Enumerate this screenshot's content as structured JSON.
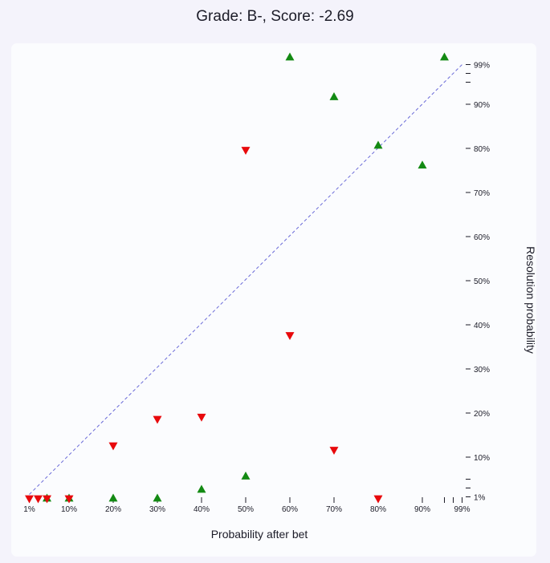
{
  "header": {
    "title": "Grade: B-, Score: -2.69"
  },
  "colors": {
    "up_green": "#138a13",
    "down_red": "#e8090c",
    "diagonal": "#6b6bd8",
    "card_bg": "#fbfcfe",
    "page_bg": "#f4f3fb"
  },
  "chart_data": {
    "type": "scatter",
    "title": "Grade: B-, Score: -2.69",
    "xlabel": "Probability after bet",
    "ylabel": "Resolution probability",
    "xlim": [
      0,
      100
    ],
    "ylim": [
      0,
      100
    ],
    "x_ticks": [
      {
        "v": 1,
        "label": "1%"
      },
      {
        "v": 10,
        "label": "10%"
      },
      {
        "v": 20,
        "label": "20%"
      },
      {
        "v": 30,
        "label": "30%"
      },
      {
        "v": 40,
        "label": "40%"
      },
      {
        "v": 50,
        "label": "50%"
      },
      {
        "v": 60,
        "label": "60%"
      },
      {
        "v": 70,
        "label": "70%"
      },
      {
        "v": 80,
        "label": "80%"
      },
      {
        "v": 90,
        "label": "90%"
      },
      {
        "v": 95,
        "label": ""
      },
      {
        "v": 97,
        "label": ""
      },
      {
        "v": 99,
        "label": "99%"
      }
    ],
    "y_ticks": [
      {
        "v": 1,
        "label": "1%"
      },
      {
        "v": 3,
        "label": ""
      },
      {
        "v": 5,
        "label": ""
      },
      {
        "v": 10,
        "label": "10%"
      },
      {
        "v": 20,
        "label": "20%"
      },
      {
        "v": 30,
        "label": "30%"
      },
      {
        "v": 40,
        "label": "40%"
      },
      {
        "v": 50,
        "label": "50%"
      },
      {
        "v": 60,
        "label": "60%"
      },
      {
        "v": 70,
        "label": "70%"
      },
      {
        "v": 80,
        "label": "80%"
      },
      {
        "v": 90,
        "label": "90%"
      },
      {
        "v": 95,
        "label": ""
      },
      {
        "v": 97,
        "label": ""
      },
      {
        "v": 99,
        "label": "99%"
      }
    ],
    "reference_line": {
      "style": "dashed",
      "from": [
        1,
        1
      ],
      "to": [
        99,
        99
      ]
    },
    "series": [
      {
        "marker": "triangle-up",
        "color": "#138a13",
        "points": [
          [
            5,
            0
          ],
          [
            10,
            0
          ],
          [
            20,
            0
          ],
          [
            30,
            0
          ],
          [
            40,
            2
          ],
          [
            50,
            5
          ],
          [
            60,
            100
          ],
          [
            70,
            91
          ],
          [
            80,
            80
          ],
          [
            90,
            75.5
          ],
          [
            95,
            100
          ]
        ]
      },
      {
        "marker": "triangle-down",
        "color": "#e8090c",
        "points": [
          [
            1,
            0
          ],
          [
            3,
            0
          ],
          [
            5,
            0
          ],
          [
            10,
            0
          ],
          [
            20,
            12
          ],
          [
            30,
            18
          ],
          [
            40,
            18.5
          ],
          [
            50,
            79
          ],
          [
            60,
            37
          ],
          [
            70,
            11
          ],
          [
            80,
            0
          ]
        ]
      }
    ]
  }
}
